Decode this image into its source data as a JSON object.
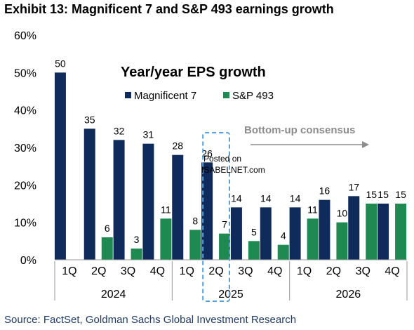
{
  "header": {
    "title": "Exhibit 13: Magnificent 7 and S&P 493 earnings growth"
  },
  "source": "Source: FactSet, Goldman Sachs Global Investment Research",
  "chart_data": {
    "type": "bar",
    "title": "Year/year EPS growth",
    "categories": [
      "1Q",
      "2Q",
      "3Q",
      "4Q",
      "1Q",
      "2Q",
      "3Q",
      "4Q",
      "1Q",
      "2Q",
      "3Q",
      "4Q"
    ],
    "year_groups": [
      {
        "label": "2024",
        "start": 0,
        "end": 3
      },
      {
        "label": "2025",
        "start": 4,
        "end": 7
      },
      {
        "label": "2026",
        "start": 8,
        "end": 11
      }
    ],
    "series": [
      {
        "name": "Magnificent 7",
        "color": "#0f2b5b",
        "values": [
          50,
          35,
          32,
          31,
          28,
          26,
          14,
          14,
          14,
          16,
          17,
          15
        ]
      },
      {
        "name": "S&P 493",
        "color": "#1e8a52",
        "values": [
          null,
          6,
          3,
          11,
          8,
          7,
          5,
          4,
          11,
          10,
          15,
          15
        ]
      }
    ],
    "ylim": [
      0,
      60
    ],
    "yticks": [
      0,
      10,
      20,
      30,
      40,
      50,
      60
    ],
    "ytick_labels": [
      "0%",
      "10%",
      "20%",
      "30%",
      "40%",
      "50%",
      "60%"
    ],
    "legend_position": "top-center",
    "annotation": {
      "text": "Bottom-up consensus"
    },
    "highlight": {
      "category_index": 5,
      "style": "dashed-box",
      "color": "#5aa0d8"
    },
    "watermark": {
      "line1": "Posted on",
      "line2": "ISABELNET.com"
    }
  }
}
